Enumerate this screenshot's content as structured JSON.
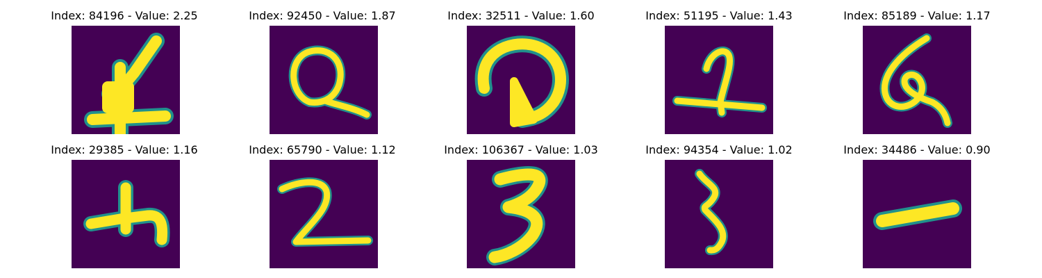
{
  "colors": {
    "background": "#440154",
    "stroke": "#fde725",
    "edge": "#21918c"
  },
  "panels": [
    {
      "title": "Index: 84196 - Value: 2.25",
      "digit_icon": "digit-4-like"
    },
    {
      "title": "Index: 92450 - Value: 1.87",
      "digit_icon": "digit-q-like"
    },
    {
      "title": "Index: 32511 - Value: 1.60",
      "digit_icon": "digit-d-like"
    },
    {
      "title": "Index: 51195 - Value: 1.43",
      "digit_icon": "digit-2-like"
    },
    {
      "title": "Index: 85189 - Value: 1.17",
      "digit_icon": "digit-6-like"
    },
    {
      "title": "Index: 29385 - Value: 1.16",
      "digit_icon": "digit-4-like"
    },
    {
      "title": "Index: 65790 - Value: 1.12",
      "digit_icon": "digit-2"
    },
    {
      "title": "Index: 106367 - Value: 1.03",
      "digit_icon": "digit-3"
    },
    {
      "title": "Index: 94354 - Value: 1.02",
      "digit_icon": "digit-3"
    },
    {
      "title": "Index: 34486 - Value: 0.90",
      "digit_icon": "digit-1-horizontal"
    }
  ]
}
